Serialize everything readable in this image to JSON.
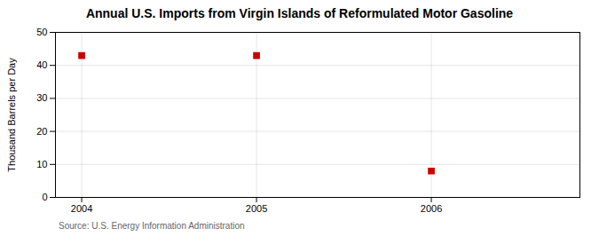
{
  "chart_data": {
    "type": "scatter",
    "title": "Annual U.S. Imports from Virgin Islands of Reformulated Motor Gasoline",
    "ylabel": "Thousand Barrels per Day",
    "source": "Source: U.S. Energy Information Administration",
    "x": [
      2004,
      2005,
      2006
    ],
    "values": [
      43,
      43,
      8
    ],
    "color": "#cc0000",
    "marker": "square",
    "xlim": [
      2003.85,
      2006.85
    ],
    "xticks": [
      2004,
      2005,
      2006
    ],
    "ylim": [
      0,
      50
    ],
    "yticks": [
      0,
      10,
      20,
      30,
      40,
      50
    ],
    "grid": true
  }
}
